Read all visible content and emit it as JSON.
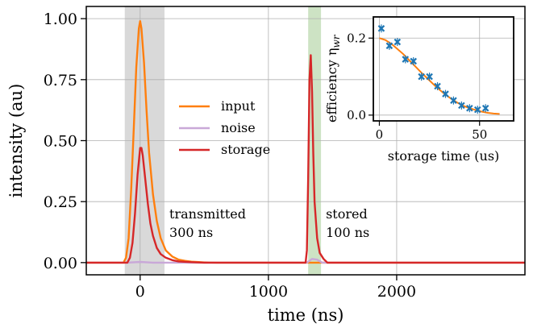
{
  "chart_data": [
    {
      "type": "line",
      "xlabel": "time (ns)",
      "ylabel": "intensity (au)",
      "xlim": [
        -420,
        3000
      ],
      "ylim": [
        -0.05,
        1.05
      ],
      "x_ticks": [
        0,
        1000,
        2000
      ],
      "x_tick_labels": [
        "0",
        "1000",
        "2000"
      ],
      "y_ticks": [
        0.0,
        0.25,
        0.5,
        0.75,
        1.0
      ],
      "y_tick_labels": [
        "0.00",
        "0.25",
        "0.50",
        "0.75",
        "1.00"
      ],
      "grid": true,
      "legend_position": "center",
      "shaded_regions": [
        {
          "x0": -120,
          "x1": 190,
          "color": "#d9d9d9",
          "label_lines": [
            "transmitted",
            "300 ns"
          ]
        },
        {
          "x0": 1310,
          "x1": 1410,
          "color": "#cde3c4",
          "label_lines": [
            "stored",
            "100 ns"
          ]
        }
      ],
      "series": [
        {
          "name": "input",
          "color": "#ff7f0e",
          "x": [
            -420,
            -130,
            -110,
            -90,
            -70,
            -50,
            -30,
            -10,
            0,
            10,
            30,
            50,
            70,
            100,
            130,
            160,
            200,
            250,
            300,
            350,
            400,
            500,
            600,
            800,
            3000
          ],
          "y": [
            0.0,
            0.0,
            0.02,
            0.1,
            0.3,
            0.55,
            0.8,
            0.96,
            0.99,
            0.96,
            0.82,
            0.62,
            0.45,
            0.28,
            0.17,
            0.1,
            0.05,
            0.025,
            0.012,
            0.007,
            0.004,
            0.001,
            0.0,
            0.0,
            0.0
          ]
        },
        {
          "name": "noise",
          "color": "#c9a8d8",
          "x": [
            -420,
            -100,
            0,
            100,
            1300,
            1340,
            1380,
            1420,
            3000
          ],
          "y": [
            0.0,
            0.0,
            0.003,
            0.0,
            0.0,
            0.015,
            0.012,
            0.0,
            0.0
          ]
        },
        {
          "name": "storage",
          "color": "#d62728",
          "x": [
            -420,
            -100,
            -80,
            -60,
            -40,
            -20,
            0,
            10,
            20,
            40,
            60,
            80,
            100,
            130,
            160,
            200,
            250,
            300,
            400,
            500,
            1290,
            1300,
            1310,
            1320,
            1330,
            1340,
            1350,
            1360,
            1380,
            1400,
            1430,
            1460,
            3000
          ],
          "y": [
            0.0,
            0.0,
            0.02,
            0.08,
            0.2,
            0.36,
            0.47,
            0.47,
            0.44,
            0.34,
            0.24,
            0.16,
            0.11,
            0.06,
            0.035,
            0.02,
            0.01,
            0.005,
            0.002,
            0.0,
            0.0,
            0.05,
            0.35,
            0.75,
            0.85,
            0.7,
            0.45,
            0.25,
            0.1,
            0.04,
            0.015,
            0.0,
            0.0
          ]
        }
      ]
    },
    {
      "type": "scatter",
      "xlabel": "storage time (us)",
      "ylabel": "efficiency η",
      "ylabel_sub": "wr",
      "xlim": [
        -3,
        67
      ],
      "ylim": [
        -0.015,
        0.255
      ],
      "x_ticks": [
        0,
        50
      ],
      "x_tick_labels": [
        "0",
        "50"
      ],
      "y_ticks": [
        0.0,
        0.2
      ],
      "y_tick_labels": [
        "0.0",
        "0.2"
      ],
      "grid": true,
      "series": [
        {
          "name": "",
          "color": "#1f77b4",
          "x": [
            1,
            5,
            9,
            13,
            17,
            21,
            25,
            29,
            33,
            37,
            41,
            45,
            49,
            53
          ],
          "y": [
            0.225,
            0.18,
            0.19,
            0.145,
            0.14,
            0.1,
            0.1,
            0.075,
            0.055,
            0.038,
            0.025,
            0.018,
            0.014,
            0.018
          ]
        },
        {
          "name": "",
          "color": "#ff7f0e",
          "x": [
            0,
            3,
            6,
            9,
            12,
            15,
            18,
            21,
            24,
            27,
            30,
            33,
            36,
            39,
            42,
            45,
            48,
            51,
            54,
            57,
            60
          ],
          "y": [
            0.2,
            0.195,
            0.185,
            0.172,
            0.158,
            0.142,
            0.126,
            0.11,
            0.095,
            0.08,
            0.066,
            0.053,
            0.042,
            0.032,
            0.024,
            0.018,
            0.013,
            0.009,
            0.006,
            0.004,
            0.003
          ]
        }
      ]
    }
  ]
}
